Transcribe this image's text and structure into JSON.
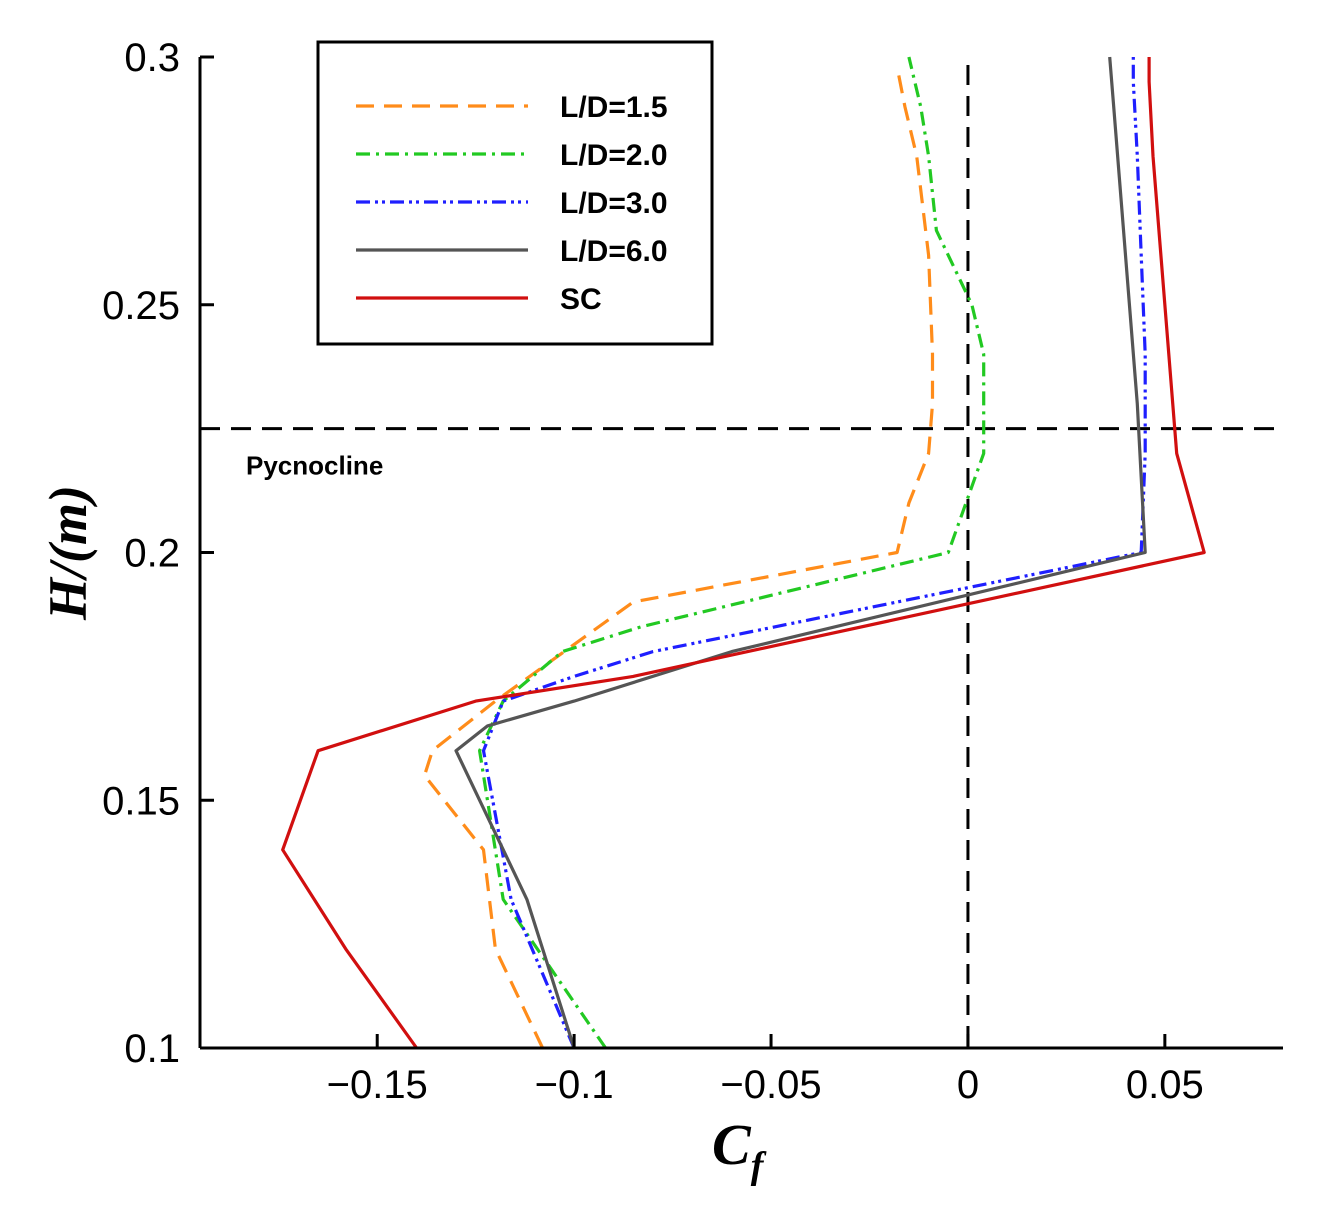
{
  "chart_data": {
    "type": "line",
    "xlabel": "C",
    "xlabel_sub": "f",
    "ylabel": "H/(m)",
    "xlim": [
      -0.195,
      0.08
    ],
    "ylim": [
      0.1,
      0.3
    ],
    "xticks": [
      -0.15,
      -0.1,
      -0.05,
      0,
      0.05
    ],
    "xtick_labels": [
      "−0.15",
      "−0.1",
      "−0.05",
      "0",
      "0.05"
    ],
    "yticks": [
      0.1,
      0.15,
      0.2,
      0.25,
      0.3
    ],
    "ytick_labels": [
      "0.1",
      "0.15",
      "0.2",
      "0.25",
      "0.3"
    ],
    "legend_position": "top-left",
    "reference_lines": {
      "pycnocline_y": 0.225,
      "zero_x": 0
    },
    "annotation": "Pycnocline",
    "series": [
      {
        "name": "L/D=1.5",
        "color": "#ff8c1a",
        "dash": "18,10",
        "x": [
          -0.108,
          -0.12,
          -0.123,
          -0.138,
          -0.136,
          -0.12,
          -0.085,
          -0.018,
          -0.015,
          -0.01,
          -0.009,
          -0.009,
          -0.01,
          -0.013,
          -0.016,
          -0.018
        ],
        "y": [
          0.1,
          0.12,
          0.14,
          0.155,
          0.16,
          0.17,
          0.19,
          0.2,
          0.21,
          0.22,
          0.23,
          0.24,
          0.26,
          0.28,
          0.29,
          0.298
        ]
      },
      {
        "name": "L/D=2.0",
        "color": "#22c922",
        "dash": "14,6,3,6",
        "x": [
          -0.092,
          -0.118,
          -0.124,
          -0.118,
          -0.103,
          -0.083,
          -0.005,
          0.004,
          0.004,
          0.004,
          0.001,
          -0.008,
          -0.01,
          -0.012,
          -0.015
        ],
        "y": [
          0.1,
          0.13,
          0.16,
          0.17,
          0.18,
          0.185,
          0.2,
          0.22,
          0.23,
          0.24,
          0.25,
          0.265,
          0.28,
          0.29,
          0.3
        ]
      },
      {
        "name": "L/D=3.0",
        "color": "#1f1fff",
        "dash": "14,5,3,4,3,5",
        "x": [
          -0.1,
          -0.116,
          -0.123,
          -0.118,
          -0.1,
          -0.08,
          0.044,
          0.045,
          0.045,
          0.044,
          0.043,
          0.042,
          0.042
        ],
        "y": [
          0.1,
          0.13,
          0.16,
          0.17,
          0.175,
          0.18,
          0.2,
          0.22,
          0.24,
          0.26,
          0.28,
          0.295,
          0.3
        ]
      },
      {
        "name": "L/D=6.0",
        "color": "#555555",
        "dash": "",
        "x": [
          -0.1,
          -0.112,
          -0.13,
          -0.122,
          -0.1,
          -0.06,
          0.045,
          0.043,
          0.04,
          0.037,
          0.036
        ],
        "y": [
          0.1,
          0.13,
          0.16,
          0.165,
          0.17,
          0.18,
          0.2,
          0.23,
          0.26,
          0.29,
          0.3
        ]
      },
      {
        "name": "SC",
        "color": "#d10f0f",
        "dash": "",
        "x": [
          -0.14,
          -0.158,
          -0.174,
          -0.165,
          -0.125,
          -0.085,
          0.06,
          0.053,
          0.051,
          0.049,
          0.047,
          0.046,
          0.046
        ],
        "y": [
          0.1,
          0.12,
          0.14,
          0.16,
          0.17,
          0.175,
          0.2,
          0.22,
          0.24,
          0.26,
          0.28,
          0.295,
          0.3
        ]
      }
    ]
  }
}
